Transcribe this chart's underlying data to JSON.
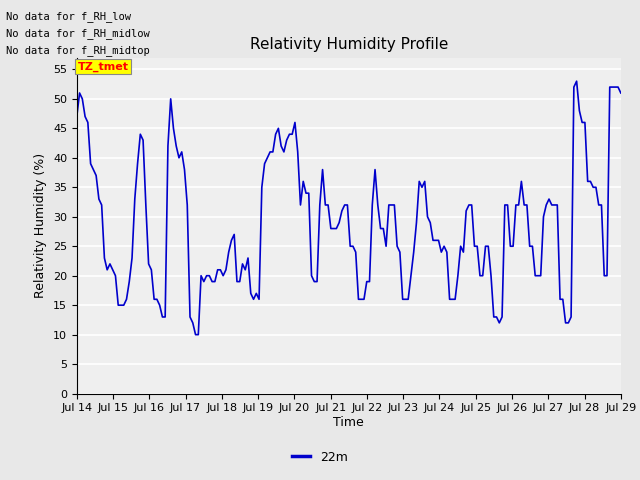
{
  "title": "Relativity Humidity Profile",
  "ylabel": "Relativity Humidity (%)",
  "xlabel": "Time",
  "legend_label": "22m",
  "ylim": [
    0,
    57
  ],
  "yticks": [
    0,
    5,
    10,
    15,
    20,
    25,
    30,
    35,
    40,
    45,
    50,
    55
  ],
  "line_color": "#0000cc",
  "line_width": 1.2,
  "no_data_texts": [
    "No data for f_RH_low",
    "No data for f_RH_midlow",
    "No data for f_RH_midtop"
  ],
  "background_color": "#e8e8e8",
  "plot_bg_color": "#efefef",
  "x_tick_labels": [
    "Jul 14",
    "Jul 15",
    "Jul 16",
    "Jul 17",
    "Jul 18",
    "Jul 19",
    "Jul 20",
    "Jul 21",
    "Jul 22",
    "Jul 23",
    "Jul 24",
    "Jul 25",
    "Jul 26",
    "Jul 27",
    "Jul 28",
    "Jul 29"
  ],
  "y_values": [
    47,
    51,
    50,
    47,
    46,
    39,
    38,
    37,
    33,
    32,
    23,
    21,
    22,
    21,
    20,
    15,
    15,
    15,
    16,
    19,
    23,
    33,
    39,
    44,
    43,
    32,
    22,
    21,
    16,
    16,
    15,
    13,
    13,
    42,
    50,
    45,
    42,
    40,
    41,
    38,
    32,
    13,
    12,
    10,
    10,
    20,
    19,
    20,
    20,
    19,
    19,
    21,
    21,
    20,
    21,
    24,
    26,
    27,
    19,
    19,
    22,
    21,
    23,
    17,
    16,
    17,
    16,
    35,
    39,
    40,
    41,
    41,
    44,
    45,
    42,
    41,
    43,
    44,
    44,
    46,
    41,
    32,
    36,
    34,
    34,
    20,
    19,
    19,
    32,
    38,
    32,
    32,
    28,
    28,
    28,
    29,
    31,
    32,
    32,
    25,
    25,
    24,
    16,
    16,
    16,
    19,
    19,
    32,
    38,
    32,
    28,
    28,
    25,
    32,
    32,
    32,
    25,
    24,
    16,
    16,
    16,
    20,
    24,
    29,
    36,
    35,
    36,
    30,
    29,
    26,
    26,
    26,
    24,
    25,
    24,
    16,
    16,
    16,
    20,
    25,
    24,
    31,
    32,
    32,
    25,
    25,
    20,
    20,
    25,
    25,
    20,
    13,
    13,
    12,
    13,
    32,
    32,
    25,
    25,
    32,
    32,
    36,
    32,
    32,
    25,
    25,
    20,
    20,
    20,
    30,
    32,
    33,
    32,
    32,
    32,
    16,
    16,
    12,
    12,
    13,
    52,
    53,
    48,
    46,
    46,
    36,
    36,
    35,
    35,
    32,
    32,
    20,
    20,
    52,
    52,
    52,
    52,
    51
  ]
}
